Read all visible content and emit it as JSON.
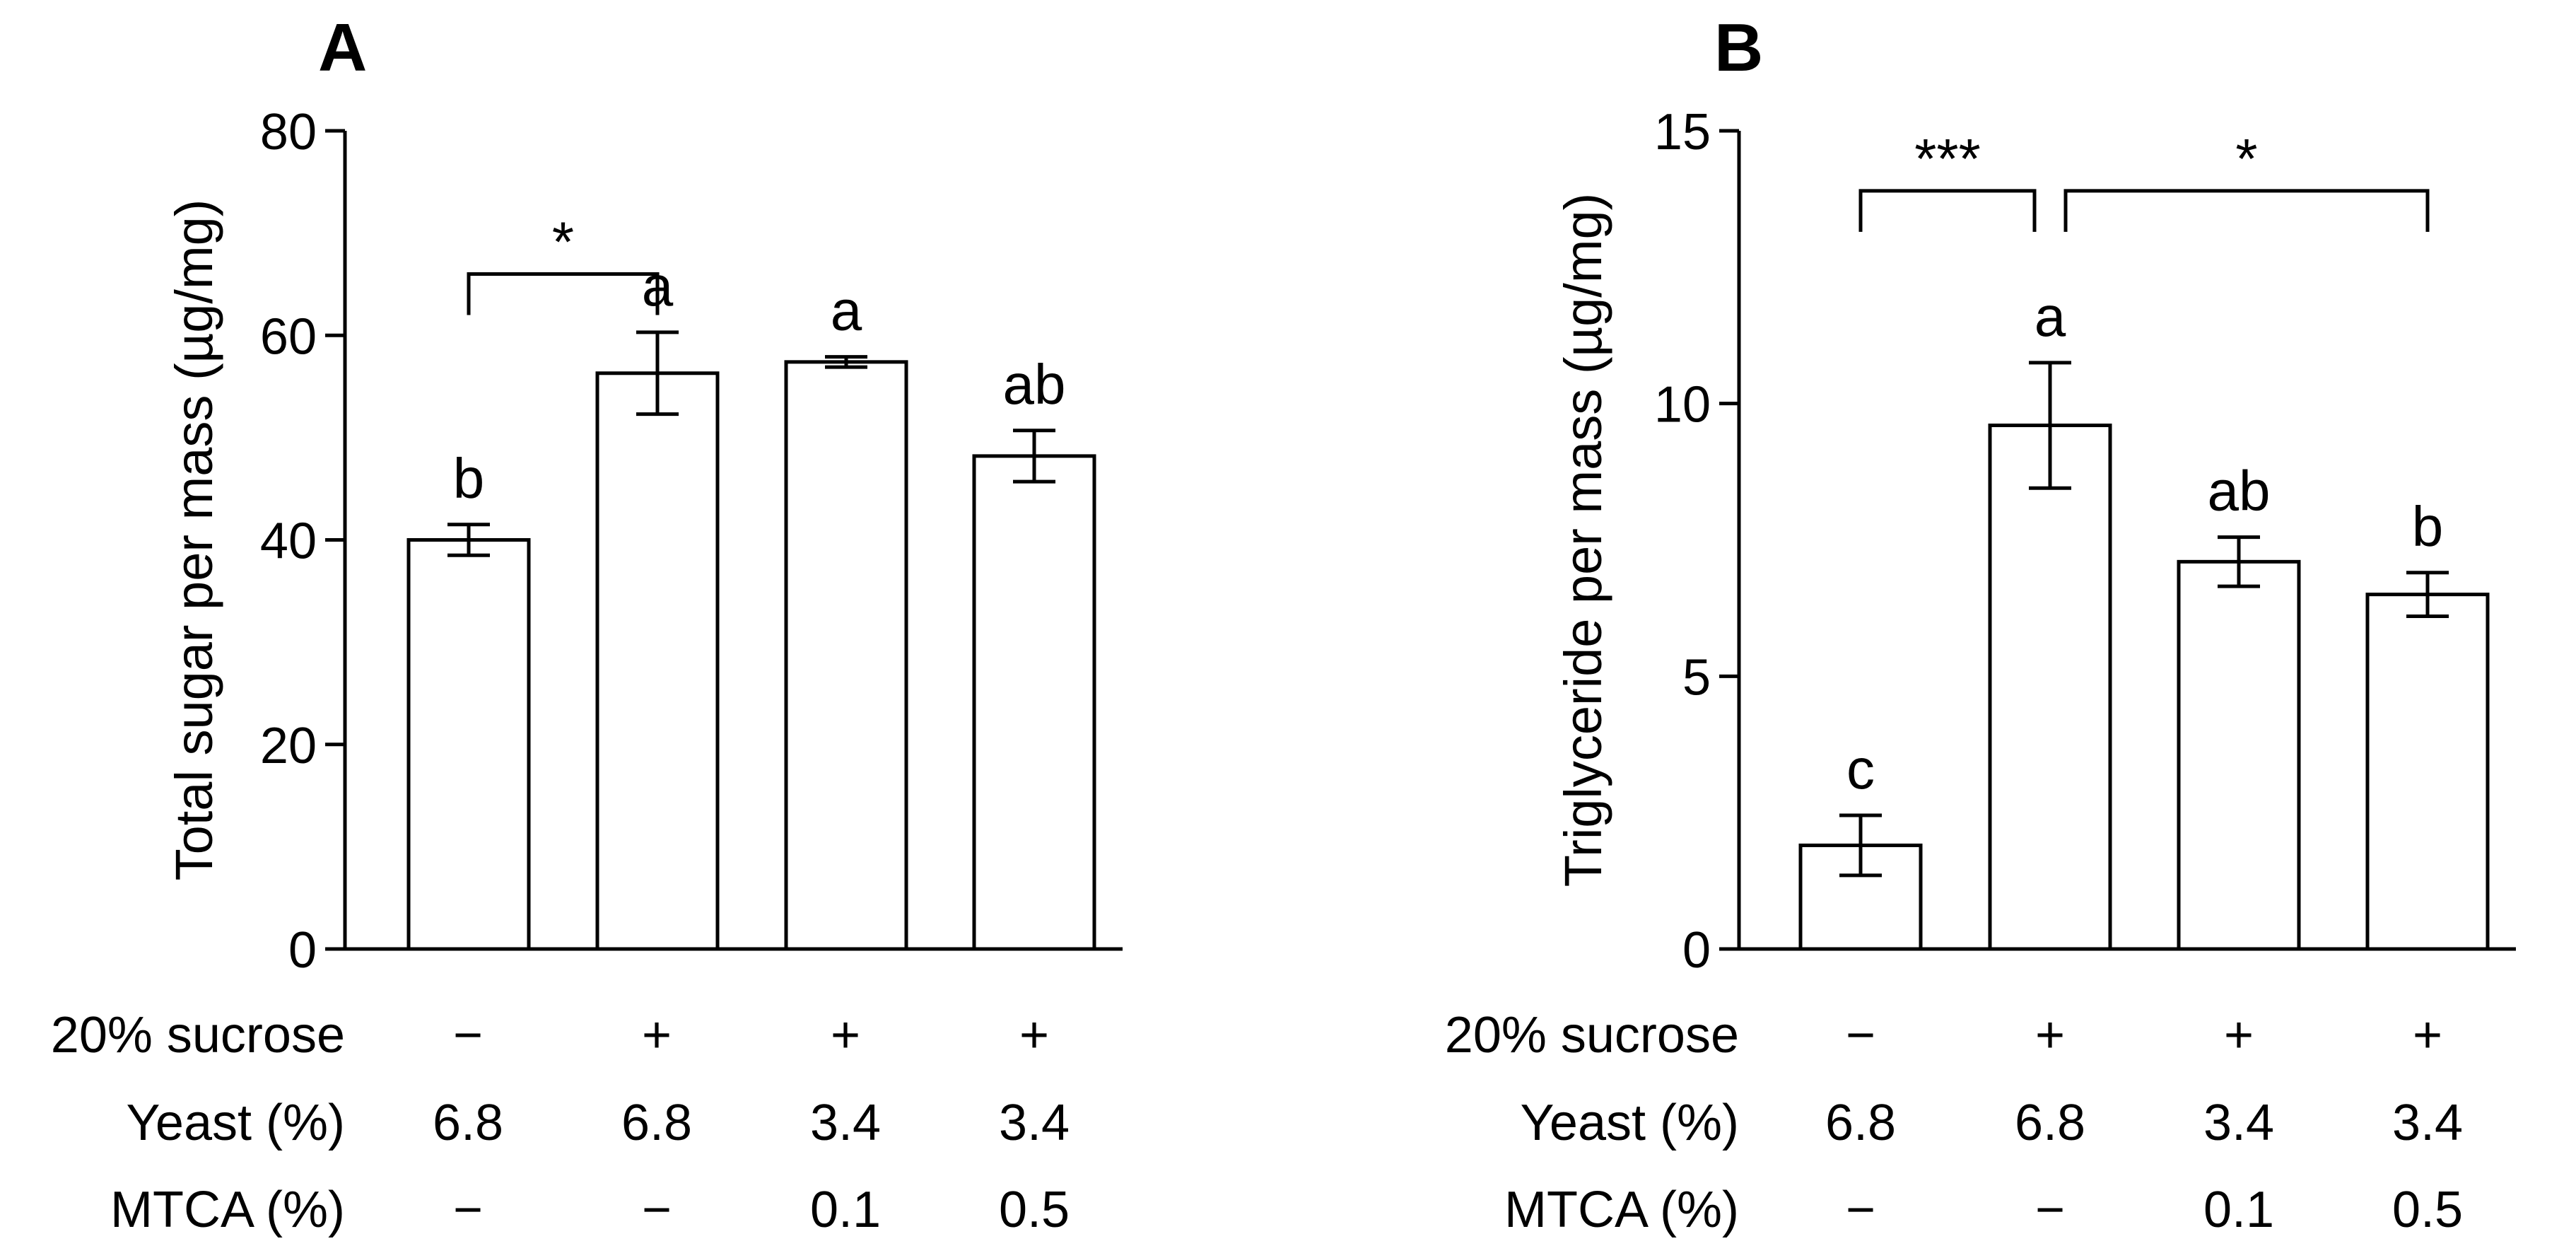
{
  "chart_data": [
    {
      "type": "bar",
      "panel_label": "A",
      "ylabel": "Total sugar per mass (µg/mg)",
      "ylim": [
        0,
        80
      ],
      "yticks": [
        0,
        20,
        40,
        60,
        80
      ],
      "categories": [
        "1",
        "2",
        "3",
        "4"
      ],
      "values": [
        40,
        56.3,
        57.4,
        48.2
      ],
      "errors": [
        1.5,
        4.0,
        0.5,
        2.5
      ],
      "significance_letters": [
        "b",
        "a",
        "a",
        "ab"
      ],
      "comparisons": [
        {
          "from": 0,
          "to": 1,
          "label": "*",
          "level": 66
        }
      ],
      "conditions": [
        {
          "label": "20% sucrose",
          "values": [
            "−",
            "+",
            "+",
            "+"
          ]
        },
        {
          "label": "Yeast (%)",
          "values": [
            "6.8",
            "6.8",
            "3.4",
            "3.4"
          ]
        },
        {
          "label": "MTCA (%)",
          "values": [
            "−",
            "−",
            "0.1",
            "0.5"
          ]
        }
      ]
    },
    {
      "type": "bar",
      "panel_label": "B",
      "ylabel": "Triglyceride per mass (µg/mg)",
      "ylim": [
        0,
        15
      ],
      "yticks": [
        0,
        5,
        10,
        15
      ],
      "categories": [
        "1",
        "2",
        "3",
        "4"
      ],
      "values": [
        1.9,
        9.6,
        7.1,
        6.5
      ],
      "errors": [
        0.55,
        1.15,
        0.45,
        0.4
      ],
      "significance_letters": [
        "c",
        "a",
        "ab",
        "b"
      ],
      "comparisons": [
        {
          "from": 0,
          "to": 1,
          "label": "***",
          "level": 13.9
        },
        {
          "from": 1,
          "to": 3,
          "label": "*",
          "level": 13.9
        }
      ],
      "conditions": [
        {
          "label": "20% sucrose",
          "values": [
            "−",
            "+",
            "+",
            "+"
          ]
        },
        {
          "label": "Yeast (%)",
          "values": [
            "6.8",
            "6.8",
            "3.4",
            "3.4"
          ]
        },
        {
          "label": "MTCA (%)",
          "values": [
            "−",
            "−",
            "0.1",
            "0.5"
          ]
        }
      ]
    }
  ]
}
